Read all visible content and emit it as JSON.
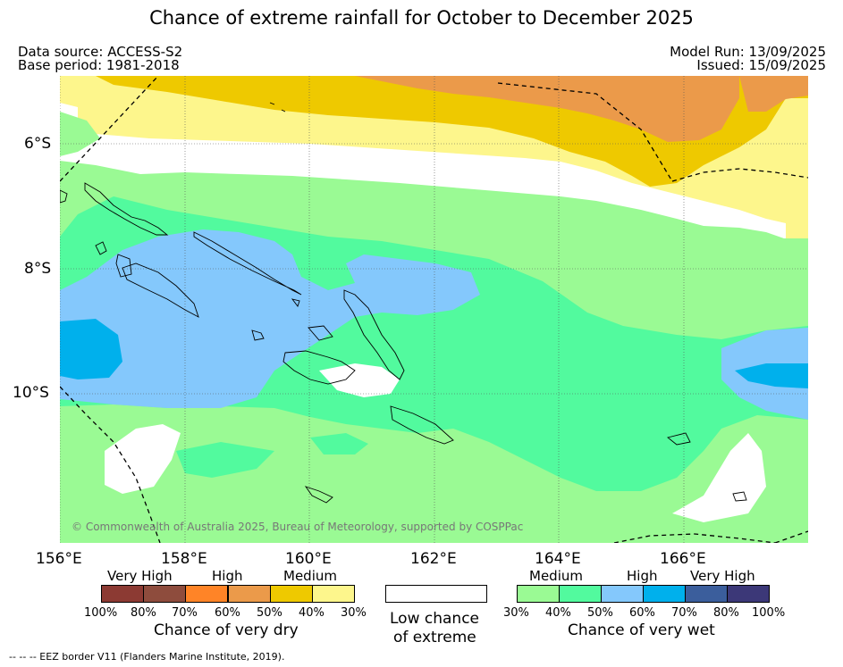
{
  "title": "Chance of extreme rainfall for October to December 2025",
  "meta": {
    "data_source": "Data source: ACCESS-S2",
    "base_period": "Base period: 1981-2018",
    "model_run": "Model Run: 13/09/2025",
    "issued": "Issued: 15/09/2025"
  },
  "map": {
    "latitude_labels": [
      "6°S",
      "8°S",
      "10°S"
    ],
    "longitude_labels": [
      "156°E",
      "158°E",
      "160°E",
      "162°E",
      "164°E",
      "166°E"
    ],
    "copyright": "© Commonwealth of Australia 2025, Bureau of Meteorology, supported by COSPPac"
  },
  "legend": {
    "dry": {
      "headings": [
        "Very High",
        "High",
        "Medium"
      ],
      "colors": [
        "#8c3a33",
        "#8e4c3d",
        "#ff8427",
        "#eb9a4a",
        "#eec900",
        "#fdf68c"
      ],
      "ticks": [
        "100%",
        "80%",
        "70%",
        "60%",
        "50%",
        "40%",
        "30%"
      ],
      "caption": "Chance of very dry"
    },
    "neutral": {
      "color": "#ffffff",
      "caption_line1": "Low chance",
      "caption_line2": "of extreme"
    },
    "wet": {
      "headings": [
        "Medium",
        "High",
        "Very High"
      ],
      "colors": [
        "#9afa94",
        "#52fa9e",
        "#84c8fc",
        "#00b0ec",
        "#3b5e9c",
        "#3c3878"
      ],
      "ticks": [
        "30%",
        "40%",
        "50%",
        "60%",
        "70%",
        "80%",
        "100%"
      ],
      "caption": "Chance of very wet"
    }
  },
  "footnote": "-- -- -- EEZ border V11 (Flanders Marine Institute, 2019)."
}
